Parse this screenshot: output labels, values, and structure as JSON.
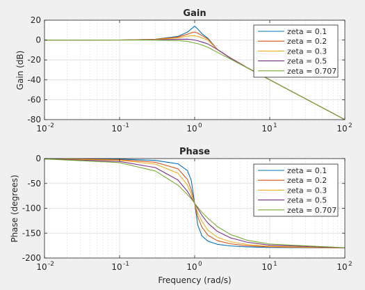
{
  "chart_data": [
    {
      "type": "line",
      "title": "Gain",
      "xlabel": "",
      "ylabel": "Gain (dB)",
      "xscale": "log",
      "xlim": [
        0.01,
        100
      ],
      "ylim": [
        -80,
        20
      ],
      "x_ticks": [
        0.01,
        0.1,
        1,
        10,
        100
      ],
      "x_tick_labels": [
        [
          "10",
          "-2"
        ],
        [
          "10",
          "-1"
        ],
        [
          "10",
          "0"
        ],
        [
          "10",
          "1"
        ],
        [
          "10",
          "2"
        ]
      ],
      "y_ticks": [
        -80,
        -60,
        -40,
        -20,
        0,
        20
      ],
      "y_tick_labels": [
        "-80",
        "-60",
        "-40",
        "-20",
        "0",
        "20"
      ],
      "grid": true,
      "minor_grid_x": true,
      "legend_position": "top-right",
      "series": [
        {
          "name": "zeta = 0.1",
          "zeta": 0.1,
          "color": "#0072bd",
          "x": [
            0.01,
            0.1,
            0.3,
            0.6,
            0.8,
            0.9,
            1.0,
            1.1,
            1.25,
            1.5,
            2,
            3,
            5,
            10,
            100
          ],
          "y": [
            0.0,
            0.08,
            0.8,
            3.7,
            7.9,
            11.1,
            14.0,
            11.1,
            6.4,
            1.8,
            -9.4,
            -18.0,
            -27.6,
            -39.9,
            -80.0
          ]
        },
        {
          "name": "zeta = 0.2",
          "zeta": 0.2,
          "color": "#d95319",
          "x": [
            0.01,
            0.1,
            0.3,
            0.6,
            0.8,
            0.9,
            1.0,
            1.1,
            1.25,
            1.5,
            2,
            3,
            5,
            10,
            100
          ],
          "y": [
            0.0,
            0.07,
            0.7,
            3.0,
            5.8,
            7.3,
            8.0,
            7.0,
            4.6,
            1.1,
            -9.4,
            -18.0,
            -27.6,
            -39.9,
            -80.0
          ]
        },
        {
          "name": "zeta = 0.3",
          "zeta": 0.3,
          "color": "#edb120",
          "x": [
            0.01,
            0.1,
            0.3,
            0.6,
            0.8,
            0.9,
            1.0,
            1.1,
            1.25,
            1.5,
            2,
            3,
            5,
            10,
            100
          ],
          "y": [
            0.0,
            0.06,
            0.5,
            2.2,
            3.9,
            4.3,
            4.4,
            3.6,
            2.2,
            0.0,
            -9.6,
            -18.1,
            -27.7,
            -40.0,
            -80.0
          ]
        },
        {
          "name": "zeta = 0.5",
          "zeta": 0.5,
          "color": "#7e2f8e",
          "x": [
            0.01,
            0.1,
            0.3,
            0.6,
            0.8,
            0.9,
            1.0,
            1.1,
            1.25,
            1.5,
            2,
            3,
            5,
            10,
            100
          ],
          "y": [
            0.0,
            0.03,
            0.2,
            0.8,
            0.9,
            0.5,
            0.0,
            -0.7,
            -2.0,
            -3.9,
            -9.4,
            -18.2,
            -27.9,
            -40.0,
            -80.0
          ]
        },
        {
          "name": "zeta = 0.707",
          "zeta": 0.707,
          "color": "#77ac30",
          "x": [
            0.01,
            0.1,
            0.3,
            0.6,
            0.8,
            0.9,
            1.0,
            1.1,
            1.25,
            1.5,
            2,
            3,
            5,
            10,
            100
          ],
          "y": [
            0.0,
            0.0,
            -0.04,
            -0.5,
            -1.3,
            -2.2,
            -3.0,
            -3.7,
            -5.0,
            -7.3,
            -12.3,
            -19.1,
            -28.0,
            -40.0,
            -80.0
          ]
        }
      ]
    },
    {
      "type": "line",
      "title": "Phase",
      "xlabel": "Frequency (rad/s)",
      "ylabel": "Phase (degrees)",
      "xscale": "log",
      "xlim": [
        0.01,
        100
      ],
      "ylim": [
        -200,
        0
      ],
      "x_ticks": [
        0.01,
        0.1,
        1,
        10,
        100
      ],
      "x_tick_labels": [
        [
          "10",
          "-2"
        ],
        [
          "10",
          "-1"
        ],
        [
          "10",
          "0"
        ],
        [
          "10",
          "1"
        ],
        [
          "10",
          "2"
        ]
      ],
      "y_ticks": [
        -200,
        -150,
        -100,
        -50,
        0
      ],
      "y_tick_labels": [
        "-200",
        "-150",
        "-100",
        "-50",
        "0"
      ],
      "grid": true,
      "minor_grid_x": true,
      "legend_position": "top-right",
      "series": [
        {
          "name": "zeta = 0.1",
          "zeta": 0.1,
          "color": "#0072bd",
          "x": [
            0.01,
            0.1,
            0.3,
            0.6,
            0.8,
            0.9,
            1.0,
            1.1,
            1.25,
            1.5,
            2,
            3,
            5,
            10,
            100
          ],
          "y": [
            -0.1,
            -1.2,
            -3.8,
            -10.6,
            -24.0,
            -43.5,
            -90.0,
            -133.6,
            -155.5,
            -166.0,
            -172.4,
            -175.7,
            -177.6,
            -178.8,
            -179.9
          ]
        },
        {
          "name": "zeta = 0.2",
          "zeta": 0.2,
          "color": "#d95319",
          "x": [
            0.01,
            0.1,
            0.3,
            0.6,
            0.8,
            0.9,
            1.0,
            1.1,
            1.25,
            1.5,
            2,
            3,
            5,
            10,
            100
          ],
          "y": [
            -0.2,
            -2.3,
            -7.5,
            -20.6,
            -41.6,
            -62.2,
            -90.0,
            -117.6,
            -138.0,
            -154.0,
            -165.1,
            -171.5,
            -175.2,
            -177.7,
            -179.8
          ]
        },
        {
          "name": "zeta = 0.3",
          "zeta": 0.3,
          "color": "#edb120",
          "x": [
            0.01,
            0.1,
            0.3,
            0.6,
            0.8,
            0.9,
            1.0,
            1.1,
            1.25,
            1.5,
            2,
            3,
            5,
            10,
            100
          ],
          "y": [
            -0.3,
            -3.5,
            -11.2,
            -29.4,
            -53.1,
            -70.9,
            -90.0,
            -109.0,
            -126.3,
            -144.2,
            -158.2,
            -167.3,
            -172.9,
            -176.5,
            -179.7
          ]
        },
        {
          "name": "zeta = 0.5",
          "zeta": 0.5,
          "color": "#7e2f8e",
          "x": [
            0.01,
            0.1,
            0.3,
            0.6,
            0.8,
            0.9,
            1.0,
            1.1,
            1.25,
            1.5,
            2,
            3,
            5,
            10,
            100
          ],
          "y": [
            -0.6,
            -5.8,
            -18.2,
            -43.2,
            -65.8,
            -78.2,
            -90.0,
            -100.4,
            -114.2,
            -129.8,
            -146.3,
            -159.4,
            -168.2,
            -174.2,
            -179.4
          ]
        },
        {
          "name": "zeta = 0.707",
          "zeta": 0.707,
          "color": "#77ac30",
          "x": [
            0.01,
            0.1,
            0.3,
            0.6,
            0.8,
            0.9,
            1.0,
            1.1,
            1.25,
            1.5,
            2,
            3,
            5,
            10,
            100
          ],
          "y": [
            -0.8,
            -8.2,
            -25.1,
            -53.5,
            -72.2,
            -80.9,
            -90.0,
            -97.8,
            -108.0,
            -120.1,
            -136.7,
            -152.7,
            -164.3,
            -172.0,
            -179.2
          ]
        }
      ]
    }
  ]
}
